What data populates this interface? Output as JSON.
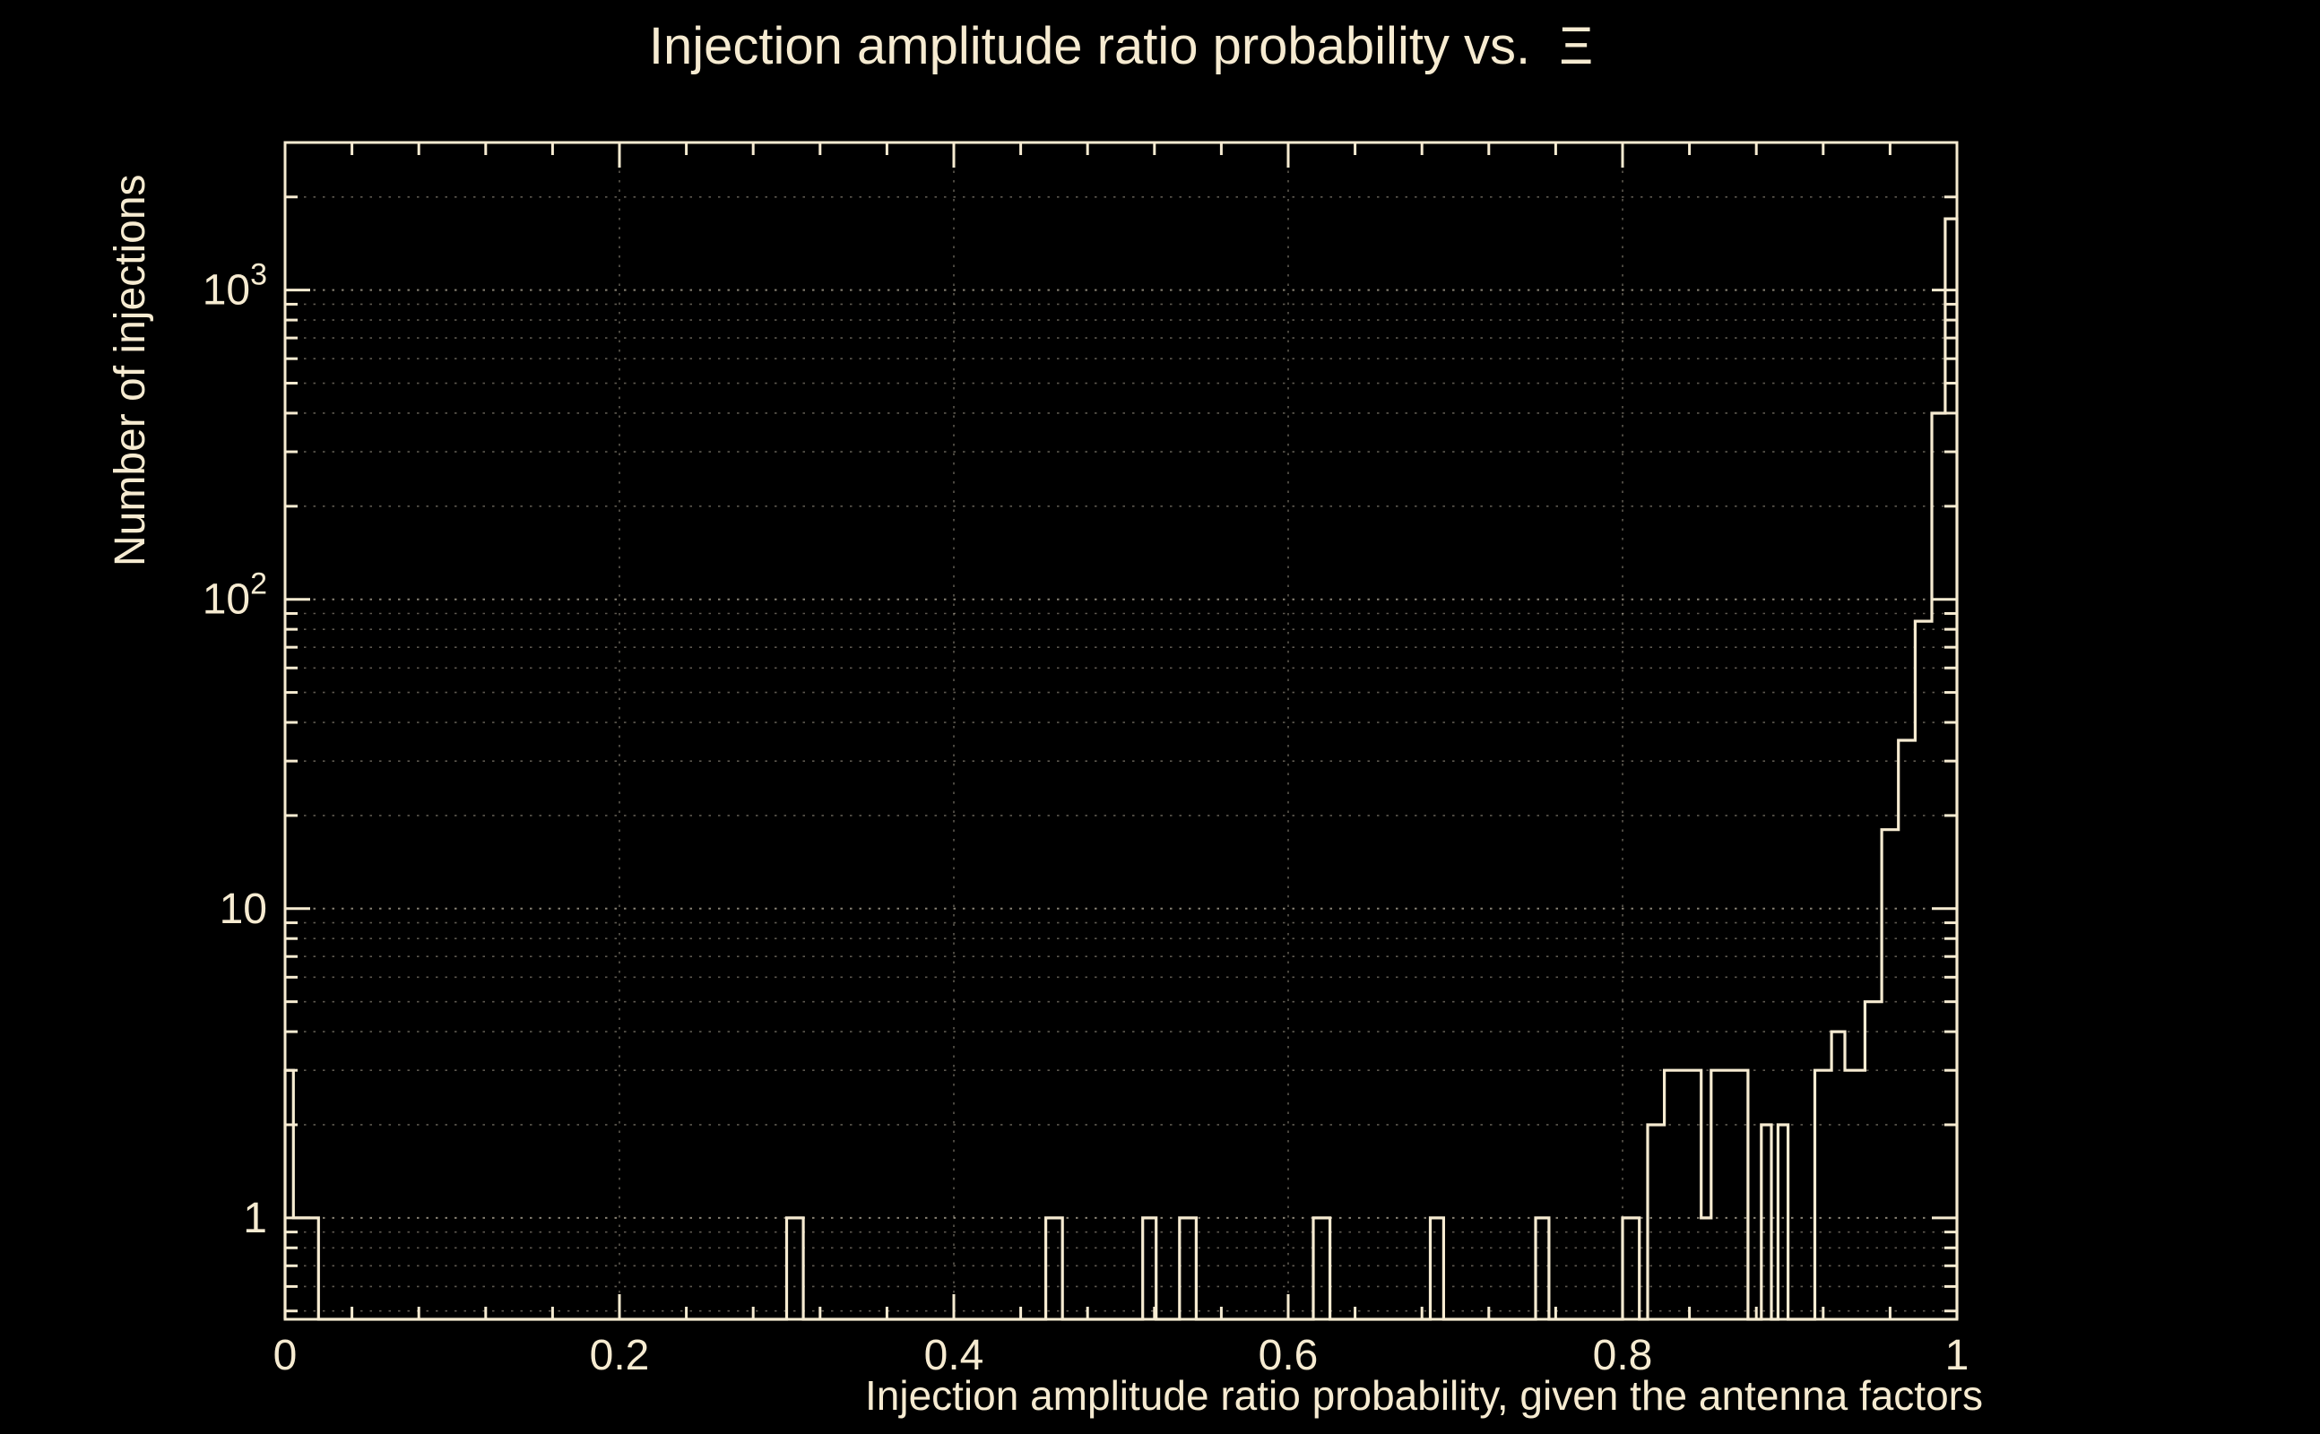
{
  "colors": {
    "background": "#000000",
    "foreground": "#f6ebd1"
  },
  "chart_data": {
    "type": "bar",
    "subtype": "step-histogram",
    "title": "Injection amplitude ratio probability vs.  Ξ",
    "xlabel": "Injection amplitude ratio probability, given the antenna factors",
    "ylabel": "Number of injections",
    "yscale": "log",
    "grid": true,
    "xlim": [
      0,
      1
    ],
    "ylim": [
      0.47,
      3000
    ],
    "x_major_ticks": [
      0,
      0.2,
      0.4,
      0.6,
      0.8,
      1
    ],
    "x_tick_labels": [
      "0",
      "0.2",
      "0.4",
      "0.6",
      "0.8",
      "1"
    ],
    "x_minor_tick_step": 0.04,
    "y_major_ticks": [
      1,
      10,
      100,
      1000
    ],
    "y_tick_labels": [
      "1",
      "10",
      "10^2",
      "10^3"
    ],
    "bins": [
      [
        0.0,
        0.005,
        3
      ],
      [
        0.005,
        0.02,
        1
      ],
      [
        0.3,
        0.31,
        1
      ],
      [
        0.455,
        0.465,
        1
      ],
      [
        0.513,
        0.521,
        1
      ],
      [
        0.535,
        0.545,
        1
      ],
      [
        0.615,
        0.625,
        1
      ],
      [
        0.685,
        0.693,
        1
      ],
      [
        0.748,
        0.756,
        1
      ],
      [
        0.8,
        0.81,
        1
      ],
      [
        0.815,
        0.825,
        2
      ],
      [
        0.825,
        0.847,
        3
      ],
      [
        0.847,
        0.853,
        1
      ],
      [
        0.853,
        0.875,
        3
      ],
      [
        0.883,
        0.889,
        2
      ],
      [
        0.893,
        0.899,
        2
      ],
      [
        0.915,
        0.925,
        3
      ],
      [
        0.925,
        0.933,
        4
      ],
      [
        0.933,
        0.945,
        3
      ],
      [
        0.945,
        0.955,
        5
      ],
      [
        0.955,
        0.965,
        18
      ],
      [
        0.965,
        0.975,
        35
      ],
      [
        0.975,
        0.985,
        85
      ],
      [
        0.985,
        0.993,
        400
      ],
      [
        0.993,
        1.0,
        1700
      ]
    ]
  }
}
